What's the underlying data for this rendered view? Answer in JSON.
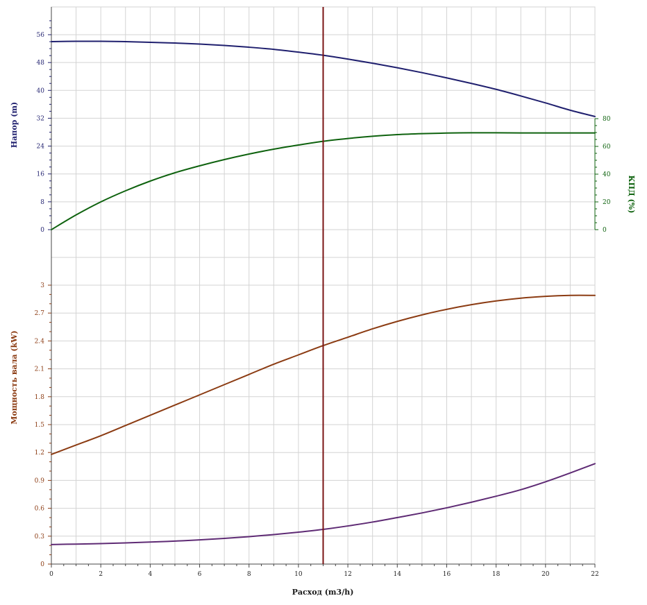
{
  "chart_data": {
    "type": "line",
    "x": [
      0,
      1,
      2,
      3,
      4,
      5,
      6,
      7,
      8,
      9,
      10,
      11,
      12,
      13,
      14,
      15,
      16,
      17,
      18,
      19,
      20,
      21,
      22
    ],
    "xlabel": "Расход (m3/h)",
    "xlim": [
      0,
      22
    ],
    "xticks": [
      0,
      2,
      4,
      6,
      8,
      10,
      12,
      14,
      16,
      18,
      20,
      22
    ],
    "operating_point_x": 11,
    "grid": true,
    "colors": {
      "head": "#1f1f6e",
      "efficiency": "#0e620e",
      "power": "#8b3b12",
      "lower": "#5e2a74",
      "marker": "#7a1414",
      "grid": "#d3d3d3"
    },
    "panels": [
      {
        "name": "top",
        "left_axis": {
          "label": "Напор (m)",
          "ylim": [
            0,
            56
          ],
          "ticks": [
            "0",
            "8",
            "16",
            "24",
            "32",
            "40",
            "48",
            "56"
          ]
        },
        "right_axis": {
          "label": "КПД (%)",
          "ylim": [
            0,
            80
          ],
          "ticks": [
            "0",
            "20",
            "40",
            "60",
            "80"
          ]
        },
        "series": [
          {
            "key": "head",
            "axis": "left",
            "values": [
              54.0,
              54.1,
              54.1,
              54.0,
              53.8,
              53.6,
              53.3,
              52.9,
              52.4,
              51.8,
              51.0,
              50.1,
              49.0,
              47.8,
              46.5,
              45.1,
              43.6,
              42.0,
              40.3,
              38.4,
              36.4,
              34.3,
              32.5
            ]
          },
          {
            "key": "efficiency",
            "axis": "right",
            "values": [
              0,
              10.6,
              20.0,
              28.0,
              35.0,
              41.0,
              46.0,
              50.5,
              54.5,
              58.0,
              61.0,
              63.7,
              65.7,
              67.3,
              68.5,
              69.2,
              69.6,
              69.8,
              69.8,
              69.7,
              69.7,
              69.7,
              69.7
            ]
          }
        ]
      },
      {
        "name": "bottom",
        "left_axis": {
          "label": "Мощность вала (kW)",
          "ylim": [
            0,
            3
          ],
          "ticks": [
            "0",
            "0.3",
            "0.6",
            "0.9",
            "1.2",
            "1.5",
            "1.8",
            "2.1",
            "2.4",
            "2.7",
            "3"
          ]
        },
        "series": [
          {
            "key": "power",
            "axis": "left",
            "values": [
              1.18,
              1.28,
              1.38,
              1.49,
              1.6,
              1.71,
              1.82,
              1.93,
              2.04,
              2.15,
              2.25,
              2.35,
              2.44,
              2.53,
              2.61,
              2.68,
              2.74,
              2.79,
              2.83,
              2.86,
              2.88,
              2.89,
              2.89
            ]
          },
          {
            "key": "lower",
            "axis": "left",
            "values": [
              0.21,
              0.215,
              0.22,
              0.228,
              0.237,
              0.247,
              0.26,
              0.276,
              0.295,
              0.317,
              0.343,
              0.373,
              0.41,
              0.452,
              0.5,
              0.55,
              0.605,
              0.665,
              0.73,
              0.8,
              0.885,
              0.98,
              1.08
            ]
          }
        ]
      }
    ]
  }
}
